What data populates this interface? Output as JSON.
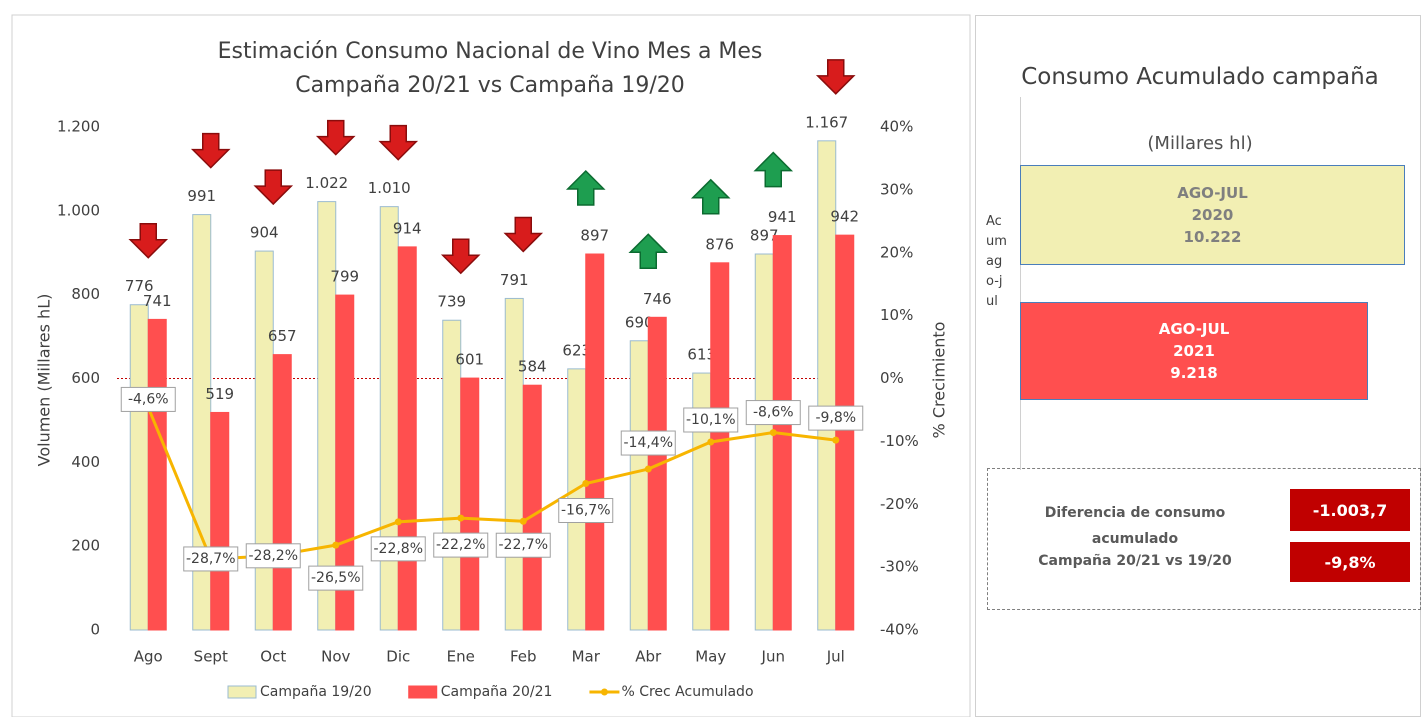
{
  "chart_data": {
    "type": "bar",
    "title": "Estimación Consumo Nacional de Vino Mes a Mes",
    "subtitle": "Campaña 20/21 vs Campaña 19/20",
    "y_label": "Volumen (Millares hL)",
    "y2_label": "% Crecimiento",
    "categories": [
      "Ago",
      "Sept",
      "Oct",
      "Nov",
      "Dic",
      "Ene",
      "Feb",
      "Mar",
      "Abr",
      "May",
      "Jun",
      "Jul"
    ],
    "series": [
      {
        "name": "Campaña 19/20",
        "type": "bar",
        "color": "#f2efb3",
        "edge": "#9bbbd0",
        "values": [
          776,
          991,
          904,
          1022,
          1010,
          739,
          791,
          623,
          690,
          613,
          897,
          1167
        ],
        "value_labels": [
          "776",
          "991",
          "904",
          "1.022",
          "1.010",
          "739",
          "791",
          "623",
          "690",
          "613",
          "897",
          "1.167"
        ]
      },
      {
        "name": "Campaña 20/21",
        "type": "bar",
        "color": "#ff4f4f",
        "edge": "#ff4f4f",
        "values": [
          741,
          519,
          657,
          799,
          914,
          601,
          584,
          897,
          746,
          876,
          941,
          942
        ],
        "value_labels": [
          "741",
          "519",
          "657",
          "799",
          "914",
          "601",
          "584",
          "897",
          "746",
          "876",
          "941",
          "942"
        ]
      },
      {
        "name": "% Crec Acumulado",
        "type": "line",
        "axis": "y2",
        "color": "#f7b500",
        "values": [
          -4.6,
          -28.7,
          -28.2,
          -26.5,
          -22.8,
          -22.2,
          -22.7,
          -16.7,
          -14.4,
          -10.1,
          -8.6,
          -9.8
        ],
        "value_labels": [
          "-4,6%",
          "-28,7%",
          "-28,2%",
          "-26,5%",
          "-22,8%",
          "-22,2%",
          "-22,7%",
          "-16,7%",
          "-14,4%",
          "-10,1%",
          "-8,6%",
          "-9,8%"
        ]
      }
    ],
    "ylim": [
      0,
      1200
    ],
    "yticks": [
      0,
      200,
      400,
      600,
      800,
      {
        "value": 1000,
        "label": "1.000"
      },
      {
        "value": 1200,
        "label": "1.200"
      }
    ],
    "y2lim": [
      -40,
      40
    ],
    "y2ticks": [
      {
        "value": -40,
        "label": "-40%"
      },
      {
        "value": -30,
        "label": "-30%"
      },
      {
        "value": -20,
        "label": "-20%"
      },
      {
        "value": -10,
        "label": "-10%"
      },
      {
        "value": 0,
        "label": "0%"
      },
      {
        "value": 10,
        "label": "10%"
      },
      {
        "value": 20,
        "label": "20%"
      },
      {
        "value": 30,
        "label": "30%"
      },
      {
        "value": 40,
        "label": "40%"
      }
    ],
    "legend": "bottom"
  },
  "panel": {
    "title": "Consumo Acumulado campaña",
    "unit": "(Millares hl)",
    "side_label": "Acum ago-jul",
    "boxes": [
      {
        "period": "AGO-JUL",
        "year": "2020",
        "value": "10.222"
      },
      {
        "period": "AGO-JUL",
        "year": "2021",
        "value": "9.218"
      }
    ],
    "difference": {
      "label": "Diferencia de consumo acumulado",
      "sublabel": "Campaña 20/21 vs 19/20",
      "values": [
        "-1.003,7",
        "-9,8%"
      ]
    }
  }
}
